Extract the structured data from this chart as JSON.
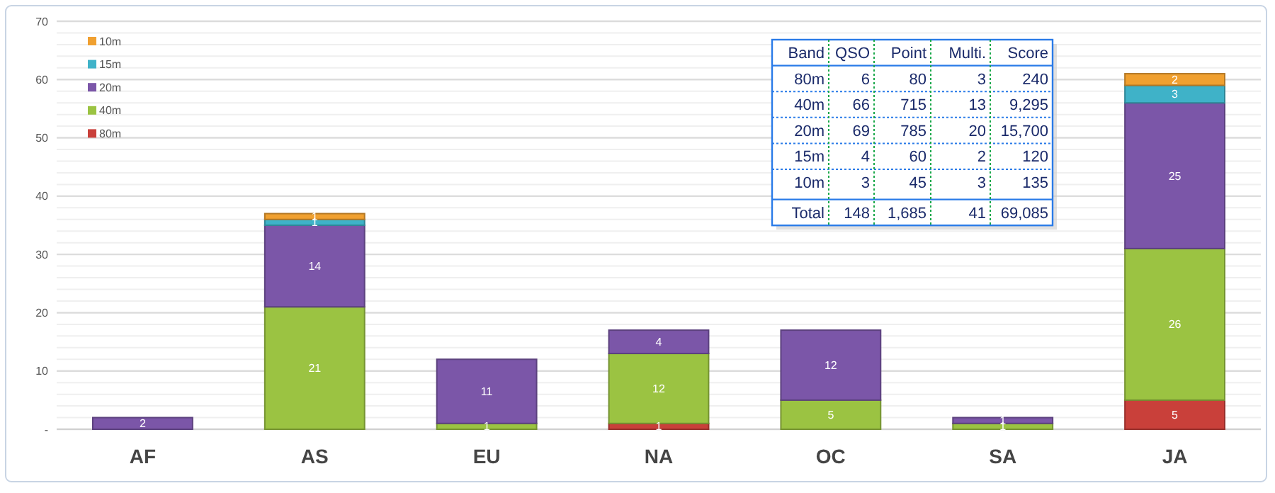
{
  "chart_data": [
    {
      "type": "bar",
      "stacked": true,
      "categories": [
        "AF",
        "AS",
        "EU",
        "NA",
        "OC",
        "SA",
        "JA"
      ],
      "series": [
        {
          "name": "80m",
          "color": "#c9403a",
          "values": [
            null,
            null,
            null,
            1,
            null,
            null,
            5
          ]
        },
        {
          "name": "40m",
          "color": "#9bc342",
          "values": [
            null,
            21,
            1,
            12,
            5,
            1,
            26
          ]
        },
        {
          "name": "20m",
          "color": "#7b56a8",
          "values": [
            2,
            14,
            11,
            4,
            12,
            1,
            25
          ]
        },
        {
          "name": "15m",
          "color": "#3fb2c8",
          "values": [
            null,
            1,
            null,
            null,
            null,
            null,
            3
          ]
        },
        {
          "name": "10m",
          "color": "#f0a030",
          "values": [
            null,
            1,
            null,
            null,
            null,
            null,
            2
          ]
        }
      ],
      "ylim": [
        0,
        70
      ],
      "yticks": [
        {
          "value": 0,
          "label": "-"
        },
        10,
        20,
        30,
        40,
        50,
        60,
        70
      ],
      "grid": "y",
      "legend": "top left",
      "data_labels": true
    },
    {
      "type": "other",
      "categories": [
        "Band",
        "QSO",
        "Point",
        "Multi.",
        "Score"
      ],
      "cell_labels": [
        [
          "80m",
          "6",
          "80",
          "3",
          "240"
        ],
        [
          "40m",
          "66",
          "715",
          "13",
          "9,295"
        ],
        [
          "20m",
          "69",
          "785",
          "20",
          "15,700"
        ],
        [
          "15m",
          "4",
          "60",
          "2",
          "120"
        ],
        [
          "10m",
          "3",
          "45",
          "3",
          "135"
        ],
        [
          "Total",
          "148",
          "1,685",
          "41",
          "69,085"
        ]
      ]
    }
  ]
}
